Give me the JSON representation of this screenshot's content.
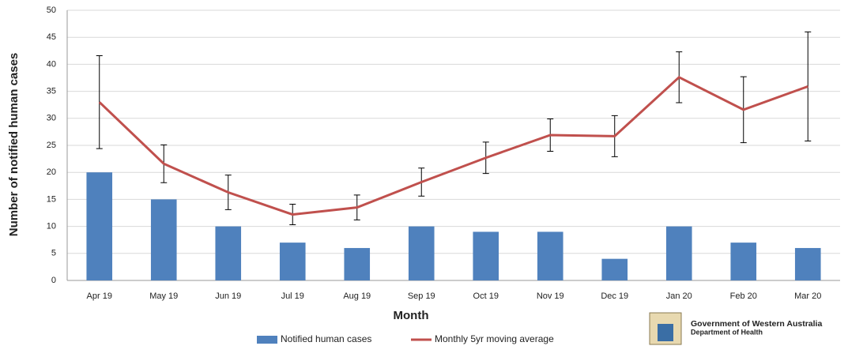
{
  "chart_data": {
    "type": "bar-line",
    "x_label": "Month",
    "y_label": "Number of notified human cases",
    "categories": [
      "Apr 19",
      "May 19",
      "Jun 19",
      "Jul 19",
      "Aug 19",
      "Sep 19",
      "Oct 19",
      "Nov 19",
      "Dec 19",
      "Jan 20",
      "Feb 20",
      "Mar 20"
    ],
    "series": [
      {
        "name": "Notified human cases",
        "type": "bar",
        "color": "#4f81bd",
        "values": [
          20,
          15,
          10,
          7,
          6,
          10,
          9,
          9,
          4,
          10,
          7,
          6
        ]
      },
      {
        "name": "Monthly 5yr moving average",
        "type": "line",
        "color": "#c0504d",
        "values": [
          33,
          21.6,
          16.3,
          12.2,
          13.5,
          18.2,
          22.7,
          26.9,
          26.7,
          37.6,
          31.6,
          35.9
        ],
        "errors": [
          8.6,
          3.5,
          3.2,
          1.9,
          2.3,
          2.6,
          2.9,
          3,
          3.8,
          4.7,
          6.1,
          10.1
        ]
      }
    ],
    "ylim": [
      0,
      50
    ],
    "yticks": [
      0,
      5,
      10,
      15,
      20,
      25,
      30,
      35,
      40,
      45,
      50
    ],
    "grid": true
  },
  "logo": {
    "line1": "Government of Western Australia",
    "line2": "Department of Health"
  }
}
